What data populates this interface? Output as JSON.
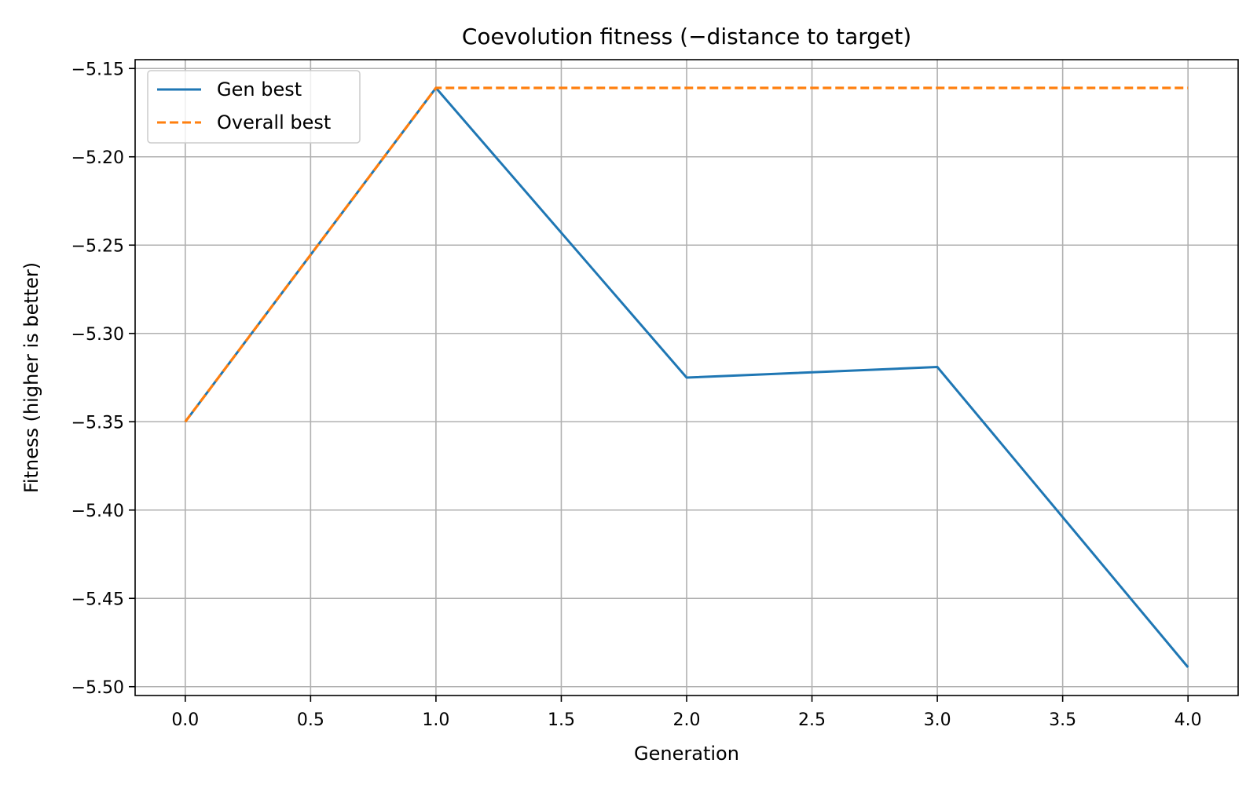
{
  "chart_data": {
    "type": "line",
    "title": "Coevolution fitness (−distance to target)",
    "xlabel": "Generation",
    "ylabel": "Fitness (higher is better)",
    "x": [
      0,
      1,
      2,
      3,
      4
    ],
    "series": [
      {
        "name": "Gen best",
        "values": [
          -5.35,
          -5.161,
          -5.325,
          -5.319,
          -5.489
        ],
        "color": "#1f77b4",
        "style": "solid"
      },
      {
        "name": "Overall best",
        "values": [
          -5.35,
          -5.161,
          -5.161,
          -5.161,
          -5.161
        ],
        "color": "#ff7f0e",
        "style": "dashed"
      }
    ],
    "xlim": [
      -0.2,
      4.2
    ],
    "ylim": [
      -5.505,
      -5.145
    ],
    "xticks": [
      0.0,
      0.5,
      1.0,
      1.5,
      2.0,
      2.5,
      3.0,
      3.5,
      4.0
    ],
    "xtick_labels": [
      "0.0",
      "0.5",
      "1.0",
      "1.5",
      "2.0",
      "2.5",
      "3.0",
      "3.5",
      "4.0"
    ],
    "yticks": [
      -5.15,
      -5.2,
      -5.25,
      -5.3,
      -5.35,
      -5.4,
      -5.45,
      -5.5
    ],
    "ytick_labels": [
      "−5.15",
      "−5.20",
      "−5.25",
      "−5.30",
      "−5.35",
      "−5.40",
      "−5.45",
      "−5.50"
    ],
    "grid": true,
    "legend_position": "upper-left",
    "grid_color": "#b0b0b0",
    "axes_color": "#000000"
  }
}
